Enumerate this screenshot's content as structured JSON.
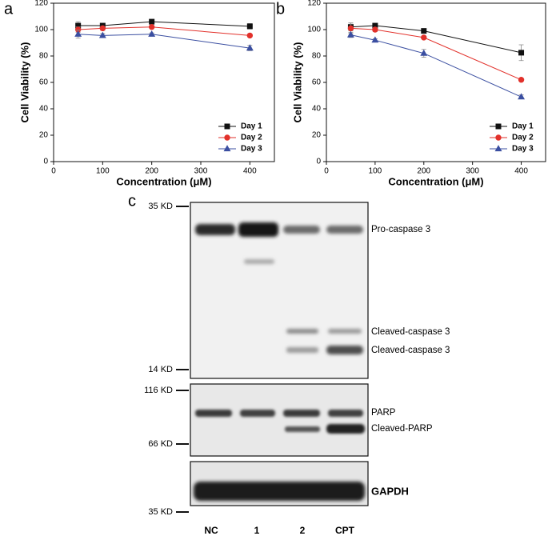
{
  "chart_data": [
    {
      "type": "line",
      "panel": "a",
      "xlabel": "Concentration (μM)",
      "ylabel": "Cell Viability (%)",
      "x": [
        50,
        100,
        200,
        400
      ],
      "xlim": [
        0,
        450
      ],
      "xticks": [
        0,
        100,
        200,
        300,
        400
      ],
      "ylim": [
        0,
        120
      ],
      "yticks": [
        0,
        20,
        40,
        60,
        80,
        100,
        120
      ],
      "legend": "lower right",
      "series": [
        {
          "name": "Day 1",
          "color": "#111111",
          "marker": "square",
          "values": [
            103,
            103,
            106,
            102.5
          ],
          "errors": [
            3,
            1.5,
            1,
            2
          ]
        },
        {
          "name": "Day 2",
          "color": "#e2312b",
          "marker": "circle",
          "values": [
            100,
            101,
            102,
            95.5
          ],
          "errors": [
            2,
            1.5,
            1,
            1
          ]
        },
        {
          "name": "Day 3",
          "color": "#3b4fa1",
          "marker": "triangle",
          "values": [
            96.5,
            95.5,
            96.5,
            86
          ],
          "errors": [
            3,
            1.5,
            1,
            2
          ]
        }
      ]
    },
    {
      "type": "line",
      "panel": "b",
      "xlabel": "Concentration (μM)",
      "ylabel": "Cell Viability (%)",
      "x": [
        50,
        100,
        200,
        400
      ],
      "xlim": [
        0,
        450
      ],
      "xticks": [
        0,
        100,
        200,
        300,
        400
      ],
      "ylim": [
        0,
        120
      ],
      "yticks": [
        0,
        20,
        40,
        60,
        80,
        100,
        120
      ],
      "legend": "lower right",
      "series": [
        {
          "name": "Day 1",
          "color": "#111111",
          "marker": "square",
          "values": [
            102,
            103,
            99,
            82.5
          ],
          "errors": [
            3,
            1.5,
            1,
            6
          ]
        },
        {
          "name": "Day 2",
          "color": "#e2312b",
          "marker": "circle",
          "values": [
            101,
            100,
            94,
            62
          ],
          "errors": [
            4,
            1.5,
            1,
            1
          ]
        },
        {
          "name": "Day 3",
          "color": "#3b4fa1",
          "marker": "triangle",
          "values": [
            96,
            92,
            82,
            49
          ],
          "errors": [
            2,
            1,
            3,
            1.5
          ]
        }
      ]
    }
  ],
  "blot": {
    "panel": "c",
    "markers": [
      "35 KD",
      "14 KD",
      "116 KD",
      "66 KD",
      "35 KD"
    ],
    "bands": [
      "Pro-caspase 3",
      "Cleaved-caspase 3",
      "Cleaved-caspase 3",
      "PARP",
      "Cleaved-PARP",
      "GAPDH"
    ],
    "lanes": [
      "NC",
      "1",
      "2",
      "CPT"
    ]
  }
}
